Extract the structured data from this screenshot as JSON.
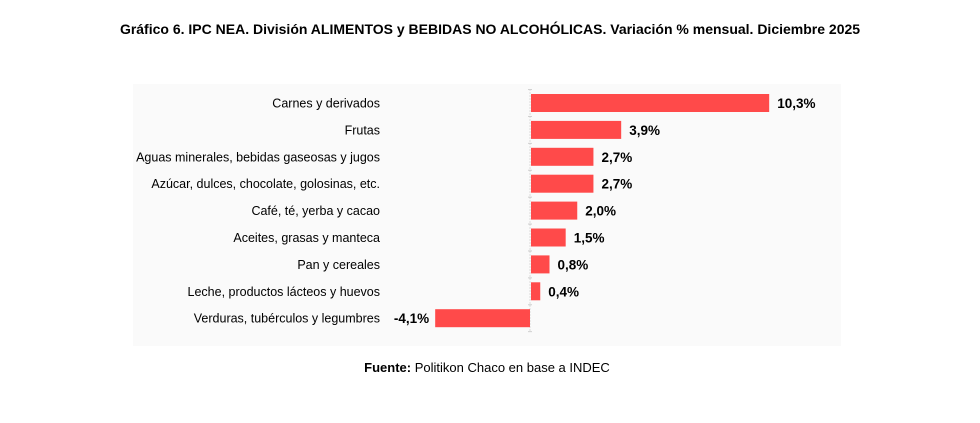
{
  "title": "Gráfico 6. IPC NEA. División ALIMENTOS y BEBIDAS NO ALCOHÓLICAS. Variación % mensual. Diciembre 2025",
  "source": {
    "label": "Fuente:",
    "text": " Politikon Chaco en base a INDEC"
  },
  "colors": {
    "bar": "#ff4a4a",
    "text": "#000000"
  },
  "chart_data": {
    "type": "bar",
    "orientation": "horizontal",
    "title": "Gráfico 6. IPC NEA. División ALIMENTOS y BEBIDAS NO ALCOHÓLICAS. Variación % mensual. Diciembre 2025",
    "xlabel": "",
    "ylabel": "",
    "unit": "%",
    "categories": [
      "Carnes y derivados",
      "Frutas",
      "Aguas minerales, bebidas gaseosas y jugos",
      "Azúcar, dulces, chocolate, golosinas, etc.",
      "Café, té, yerba y cacao",
      "Aceites, grasas y manteca",
      "Pan y cereales",
      "Leche, productos lácteos y huevos",
      "Verduras, tubérculos y legumbres"
    ],
    "values": [
      10.3,
      3.9,
      2.7,
      2.7,
      2.0,
      1.5,
      0.8,
      0.4,
      -4.1
    ],
    "labels": [
      "10,3%",
      "3,9%",
      "2,7%",
      "2,7%",
      "2,0%",
      "1,5%",
      "0,8%",
      "0,4%",
      "-4,1%"
    ],
    "xlim": [
      -4.1,
      10.3
    ],
    "grid": false,
    "legend": "none"
  }
}
